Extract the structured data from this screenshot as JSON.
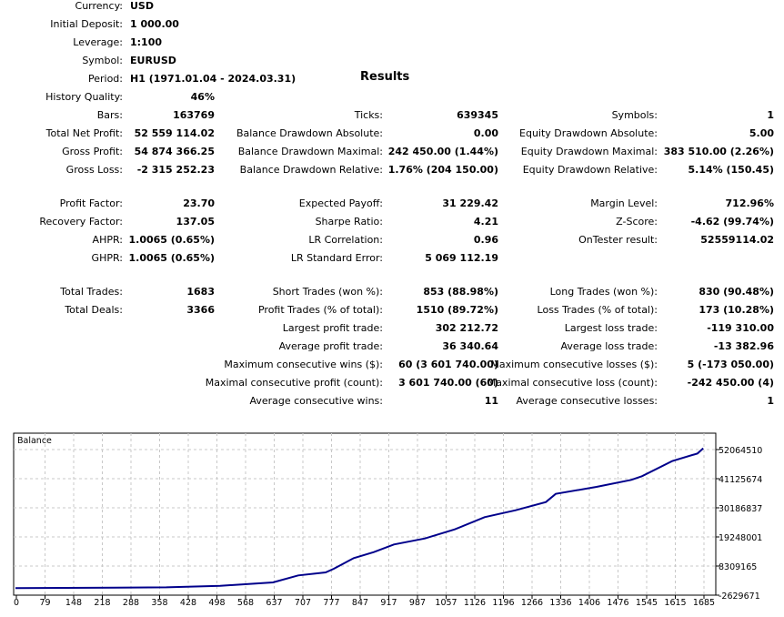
{
  "header": [
    {
      "label": "Currency:",
      "value": "USD"
    },
    {
      "label": "Initial Deposit:",
      "value": "1 000.00"
    },
    {
      "label": "Leverage:",
      "value": "1:100"
    },
    {
      "label": "Symbol:",
      "value": "EURUSD"
    },
    {
      "label": "Period:",
      "value": "H1 (1971.01.04 - 2024.03.31)"
    }
  ],
  "results_title": "Results",
  "sections": [
    [
      [
        {
          "label": "History Quality:",
          "value": "46%"
        }
      ],
      [
        {
          "label": "Bars:",
          "value": "163769"
        },
        {
          "label": "Ticks:",
          "value": "639345"
        },
        {
          "label": "Symbols:",
          "value": "1"
        }
      ],
      [
        {
          "label": "Total Net Profit:",
          "value": "52 559 114.02"
        },
        {
          "label": "Balance Drawdown Absolute:",
          "value": "0.00"
        },
        {
          "label": "Equity Drawdown Absolute:",
          "value": "5.00"
        }
      ],
      [
        {
          "label": "Gross Profit:",
          "value": "54 874 366.25"
        },
        {
          "label": "Balance Drawdown Maximal:",
          "value": "242 450.00 (1.44%)"
        },
        {
          "label": "Equity Drawdown Maximal:",
          "value": "383 510.00 (2.26%)"
        }
      ],
      [
        {
          "label": "Gross Loss:",
          "value": "-2 315 252.23"
        },
        {
          "label": "Balance Drawdown Relative:",
          "value": "1.76% (204 150.00)"
        },
        {
          "label": "Equity Drawdown Relative:",
          "value": "5.14% (150.45)"
        }
      ]
    ],
    [
      [
        {
          "label": "Profit Factor:",
          "value": "23.70"
        },
        {
          "label": "Expected Payoff:",
          "value": "31 229.42"
        },
        {
          "label": "Margin Level:",
          "value": "712.96%"
        }
      ],
      [
        {
          "label": "Recovery Factor:",
          "value": "137.05"
        },
        {
          "label": "Sharpe Ratio:",
          "value": "4.21"
        },
        {
          "label": "Z-Score:",
          "value": "-4.62 (99.74%)"
        }
      ],
      [
        {
          "label": "AHPR:",
          "value": "1.0065 (0.65%)"
        },
        {
          "label": "LR Correlation:",
          "value": "0.96"
        },
        {
          "label": "OnTester result:",
          "value": "52559114.02"
        }
      ],
      [
        {
          "label": "GHPR:",
          "value": "1.0065 (0.65%)"
        },
        {
          "label": "LR Standard Error:",
          "value": "5 069 112.19"
        }
      ]
    ],
    [
      [
        {
          "label": "Total Trades:",
          "value": "1683"
        },
        {
          "label": "Short Trades (won %):",
          "value": "853 (88.98%)"
        },
        {
          "label": "Long Trades (won %):",
          "value": "830 (90.48%)"
        }
      ],
      [
        {
          "label": "Total Deals:",
          "value": "3366"
        },
        {
          "label": "Profit Trades (% of total):",
          "value": "1510 (89.72%)"
        },
        {
          "label": "Loss Trades (% of total):",
          "value": "173 (10.28%)"
        }
      ],
      [
        null,
        {
          "label": "Largest profit trade:",
          "value": "302 212.72"
        },
        {
          "label": "Largest loss trade:",
          "value": "-119 310.00"
        }
      ],
      [
        null,
        {
          "label": "Average profit trade:",
          "value": "36 340.64"
        },
        {
          "label": "Average loss trade:",
          "value": "-13 382.96"
        }
      ],
      [
        null,
        {
          "label": "Maximum consecutive wins ($):",
          "value": "60 (3 601 740.00)"
        },
        {
          "label": "Maximum consecutive losses ($):",
          "value": "5 (-173 050.00)"
        }
      ],
      [
        null,
        {
          "label": "Maximal consecutive profit (count):",
          "value": "3 601 740.00 (60)"
        },
        {
          "label": "Maximal consecutive loss (count):",
          "value": "-242 450.00 (4)"
        }
      ],
      [
        null,
        {
          "label": "Average consecutive wins:",
          "value": "11"
        },
        {
          "label": "Average consecutive losses:",
          "value": "1"
        }
      ]
    ]
  ],
  "chart_data": {
    "type": "line",
    "title": "Balance",
    "x_tick_labels": [
      "0",
      "79",
      "148",
      "218",
      "288",
      "358",
      "428",
      "498",
      "568",
      "637",
      "707",
      "777",
      "847",
      "917",
      "987",
      "1057",
      "1126",
      "1196",
      "1266",
      "1336",
      "1406",
      "1476",
      "1545",
      "1615",
      "1685"
    ],
    "y_tick_labels": [
      "52064510",
      "41125674",
      "30186837",
      "19248001",
      "8309165",
      "-2629671"
    ],
    "ylim": [
      -2629671,
      52064510
    ],
    "grid": true,
    "line_color": "#00008b",
    "series": [
      {
        "x": [
          0,
          369,
          501,
          630,
          692,
          759,
          779,
          828,
          877,
          926,
          1002,
          1075,
          1148,
          1224,
          1298,
          1322,
          1422,
          1507,
          1533,
          1607,
          1669,
          1683
        ],
        "y": [
          1000,
          300000,
          890000,
          2160000,
          4790000,
          5920000,
          7280000,
          11280000,
          13540000,
          16410000,
          18670000,
          22090000,
          26670000,
          29260000,
          32340000,
          35420000,
          38050000,
          40680000,
          42050000,
          47720000,
          50590000,
          52560114
        ]
      }
    ]
  }
}
